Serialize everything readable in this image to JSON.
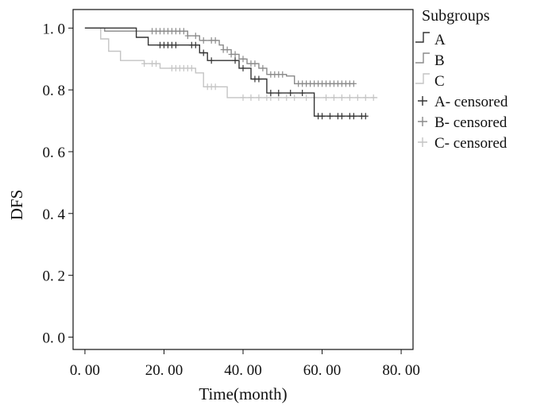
{
  "chart_data": {
    "type": "line",
    "xlabel": "Time(month)",
    "ylabel": "DFS",
    "xlim": [
      -3,
      83
    ],
    "ylim": [
      -0.04,
      1.06
    ],
    "x_ticks": [
      0,
      20,
      40,
      60,
      80
    ],
    "x_tick_labels": [
      "0. 00",
      "20. 00",
      "40. 00",
      "60. 00",
      "80. 00"
    ],
    "y_ticks": [
      0.0,
      0.2,
      0.4,
      0.6,
      0.8,
      1.0
    ],
    "y_tick_labels": [
      "0. 0",
      "0. 2",
      "0. 4",
      "0. 6",
      "0. 8",
      "1. 0"
    ],
    "legend_title": "Subgroups",
    "legend_position": "right",
    "series": [
      {
        "name": "A",
        "censored_label": "A- censored",
        "color": "#333333",
        "steps": [
          [
            0,
            1.0
          ],
          [
            13,
            0.97
          ],
          [
            16,
            0.945
          ],
          [
            25,
            0.945
          ],
          [
            29,
            0.92
          ],
          [
            31,
            0.895
          ],
          [
            39,
            0.87
          ],
          [
            42,
            0.835
          ],
          [
            46,
            0.79
          ],
          [
            58,
            0.715
          ],
          [
            71,
            0.715
          ]
        ],
        "censored": [
          19,
          20,
          21,
          22,
          23,
          27,
          28,
          30,
          32,
          38,
          40,
          43,
          44,
          47,
          49,
          52,
          55,
          59,
          60,
          62,
          64,
          65,
          67,
          68,
          70,
          71
        ]
      },
      {
        "name": "B",
        "censored_label": "B- censored",
        "color": "#8a8a8a",
        "steps": [
          [
            0,
            1.0
          ],
          [
            5,
            0.99
          ],
          [
            17,
            0.99
          ],
          [
            26,
            0.975
          ],
          [
            29,
            0.96
          ],
          [
            34,
            0.945
          ],
          [
            35,
            0.93
          ],
          [
            37,
            0.915
          ],
          [
            39,
            0.9
          ],
          [
            41,
            0.885
          ],
          [
            44,
            0.87
          ],
          [
            46,
            0.85
          ],
          [
            51,
            0.845
          ],
          [
            53,
            0.82
          ],
          [
            68,
            0.82
          ]
        ],
        "censored": [
          17,
          18,
          19,
          20,
          21,
          22,
          23,
          24,
          25,
          26,
          28,
          30,
          32,
          33,
          35,
          36,
          37,
          38,
          40,
          42,
          43,
          45,
          47,
          48,
          49,
          50,
          54,
          55,
          56,
          57,
          58,
          59,
          60,
          61,
          62,
          63,
          64,
          65,
          66,
          67,
          68
        ]
      },
      {
        "name": "C",
        "censored_label": "C- censored",
        "color": "#c4c4c4",
        "steps": [
          [
            0,
            1.0
          ],
          [
            4,
            0.965
          ],
          [
            6,
            0.925
          ],
          [
            9,
            0.895
          ],
          [
            15,
            0.885
          ],
          [
            19,
            0.87
          ],
          [
            28,
            0.855
          ],
          [
            30,
            0.81
          ],
          [
            36,
            0.775
          ],
          [
            74,
            0.775
          ]
        ],
        "censored": [
          15,
          17,
          18,
          22,
          23,
          24,
          25,
          26,
          27,
          31,
          32,
          33,
          40,
          42,
          44,
          46,
          47,
          49,
          51,
          53,
          56,
          58,
          61,
          63,
          65,
          67,
          69,
          71,
          73
        ]
      }
    ]
  }
}
